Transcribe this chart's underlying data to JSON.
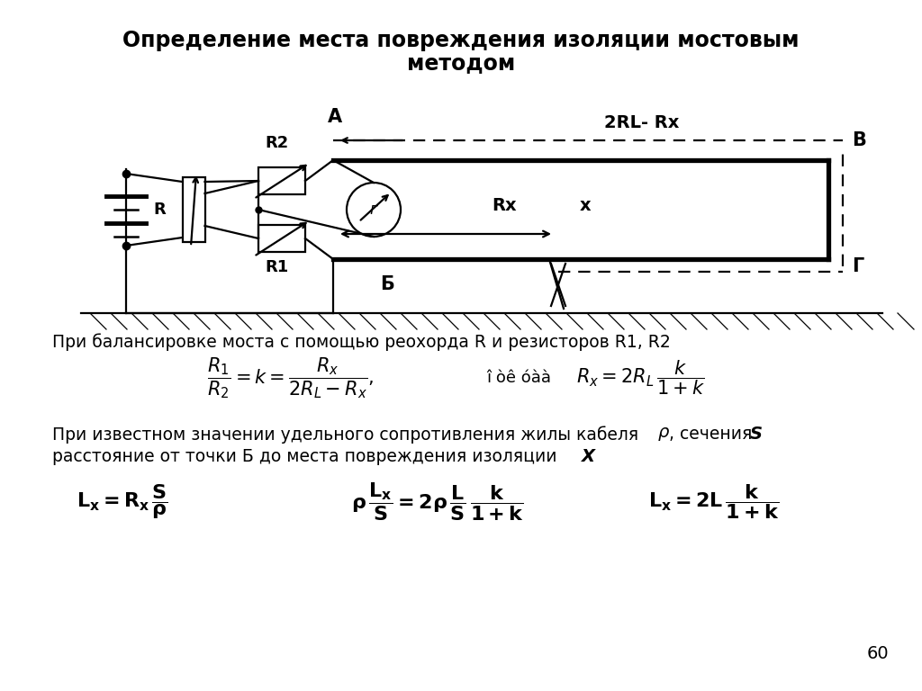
{
  "title_line1": "Определение места повреждения изоляции мостовым",
  "title_line2": "методом",
  "title_fontsize": 17,
  "bg_color": "#ffffff",
  "text_color": "#000000",
  "text1": "При балансировке моста с помощью реохорда R и резисторов R1, R2",
  "text2a": "При известном значении удельного сопротивления жилы кабеля ",
  "text2b": ", сечения ",
  "text2c": "расстояние от точки Б до места повреждения изоляции ",
  "page_num": "60"
}
